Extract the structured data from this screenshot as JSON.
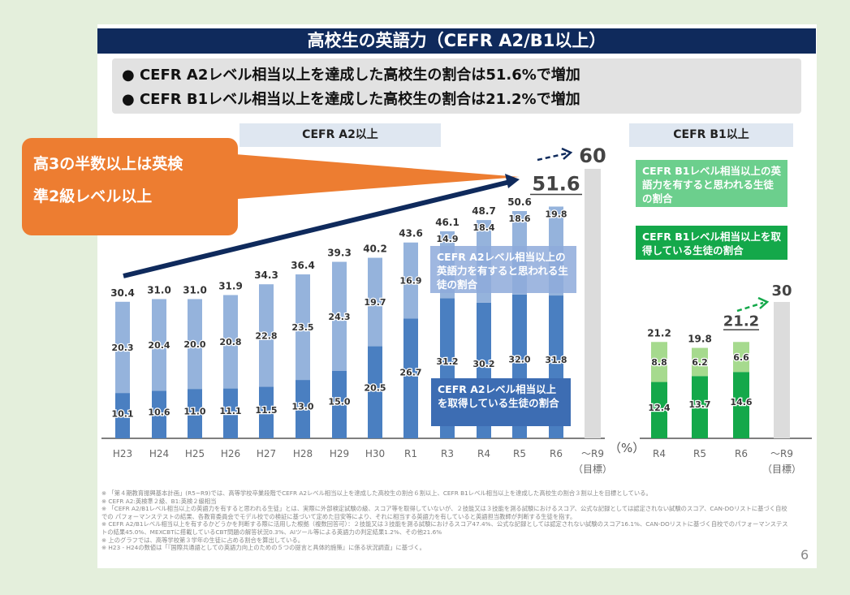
{
  "title": "高校生の英語力（CEFR A2/B1以上）",
  "bullets": [
    "●  CEFR A2レベル相当以上を達成した高校生の割合は51.6%で増加",
    "●  CEFR B1レベル相当以上を達成した高校生の割合は21.2%で増加"
  ],
  "callout": [
    "高3の半数以上は英検",
    "準2級レベル以上"
  ],
  "page_number": "6",
  "unit": "（%）",
  "notes": [
    "※ 「第４期教育振興基本計画」(R5~R9)では、高等学校卒業段階でCEFR A2レベル相当以上を達成した高校生の割合６割以上、CEFR B1レベル相当以上を達成した高校生の割合３割以上を目標としている。",
    "※ CEFR A2:英検準２級、B1:英検２級相当",
    "※ 「CEFR A2/B1レベル相当以上の英語力を有すると思われる生徒」とは、実際に外部検定試験の級、スコア等を取得していないが、２技能又は３技能を測る試験におけるスコア、公式な記録としては認定されない試験のスコア、CAN-DOリストに基づく自校での パフォーマンステストの結果、各教育委員会でモデル校での検証に基づいて定めた目安等により、それに相当する英語力を有していると英語担当教師が判断する生徒を指す。",
    "※ CEFR A2/B1レベル相当以上を有するかどうかを判断する際に活用した根拠（複数回答可）：２技能又は３技能を測る試験におけるスコア47.4%、公式な記録としては認定されない試験のスコア16.1%、CAN-DOリストに基づく自校でのパフォーマンステストの結果45.0%、MEXCBTに搭載しているCBT問題の解答状況0.3%、AIツール等による英語力の判定結果1.2%、その他21.6%",
    "※ 上のグラフでは、高等学校第３学年の生徒に占める割合を算出している。",
    "※ H23 - H24の数値は「『国際共通語としての英語力向上のための５つの提言と具体的施策』に係る状況調査」に基づく。"
  ],
  "chart_data": [
    {
      "type": "bar",
      "stacked": true,
      "title": "CEFR A2以上",
      "ylabel": "%",
      "ylim": [
        0,
        60
      ],
      "categories": [
        "H23",
        "H24",
        "H25",
        "H26",
        "H27",
        "H28",
        "H29",
        "H30",
        "R1",
        "R3",
        "R4",
        "R5",
        "R6"
      ],
      "totals": [
        "30.4",
        "31.0",
        "31.0",
        "31.9",
        "34.3",
        "36.4",
        "39.3",
        "40.2",
        "43.6",
        "46.1",
        "48.7",
        "50.6",
        "51.6"
      ],
      "series": [
        {
          "name": "CEFR A2レベル相当以上を取得している生徒の割合",
          "color": "#4a7fc1",
          "values": [
            10.1,
            10.6,
            11.0,
            11.1,
            11.5,
            13.0,
            15.0,
            20.5,
            26.7,
            31.2,
            30.2,
            32.0,
            31.8
          ]
        },
        {
          "name": "CEFR A2レベル相当以上の英語力を有すると思われる生徒の割合",
          "color": "#95b3dc",
          "values": [
            20.3,
            20.4,
            20.0,
            20.8,
            22.8,
            23.5,
            24.3,
            19.7,
            16.9,
            14.9,
            18.4,
            18.6,
            19.8
          ]
        }
      ],
      "target": {
        "label": "～R9",
        "sublabel": "（目標）",
        "value": 60
      }
    },
    {
      "type": "bar",
      "stacked": true,
      "title": "CEFR B1以上",
      "ylabel": "%",
      "ylim": [
        0,
        30
      ],
      "categories": [
        "R4",
        "R5",
        "R6"
      ],
      "totals": [
        "21.2",
        "19.8",
        "21.2"
      ],
      "series": [
        {
          "name": "CEFR B1レベル相当以上を取得している生徒の割合",
          "color": "#14a84a",
          "values": [
            12.4,
            13.7,
            14.6
          ]
        },
        {
          "name": "CEFR B1レベル相当以上の英語力を有すると思われる生徒の割合",
          "color": "#a6da8e",
          "values": [
            8.8,
            6.2,
            6.6
          ]
        }
      ],
      "target": {
        "label": "～R9",
        "sublabel": "（目標）",
        "value": 30
      }
    }
  ]
}
